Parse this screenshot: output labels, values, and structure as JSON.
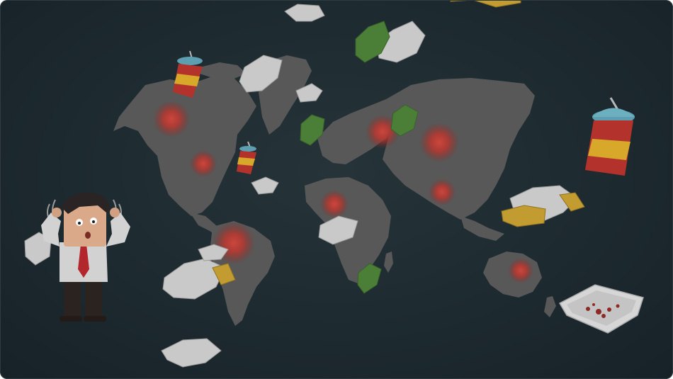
{
  "scene": {
    "subject": "world-map-plastic-pollution",
    "colors": {
      "background": "#1f2c32",
      "land": "#5a5a5a",
      "hotspot": "#c93a33",
      "hotspot_glow": "#e2463d",
      "plastic_bag": "#d3d3d3",
      "green_bag": "#4f8a3a",
      "cup_red": "#b3332c",
      "cup_yellow": "#d8a82a",
      "cup_blue": "#5d9fb0",
      "wrapper_yellow": "#c9a233",
      "tray": "#d9d9d9",
      "shirt": "#d8d8d8",
      "tie": "#b3262b",
      "hair": "#2a2424",
      "skin": "#d9a98a",
      "pants": "#2b2320"
    },
    "icons": [
      "worried-man",
      "plastic-cup",
      "plastic-bag",
      "food-tray",
      "wrapper"
    ]
  }
}
